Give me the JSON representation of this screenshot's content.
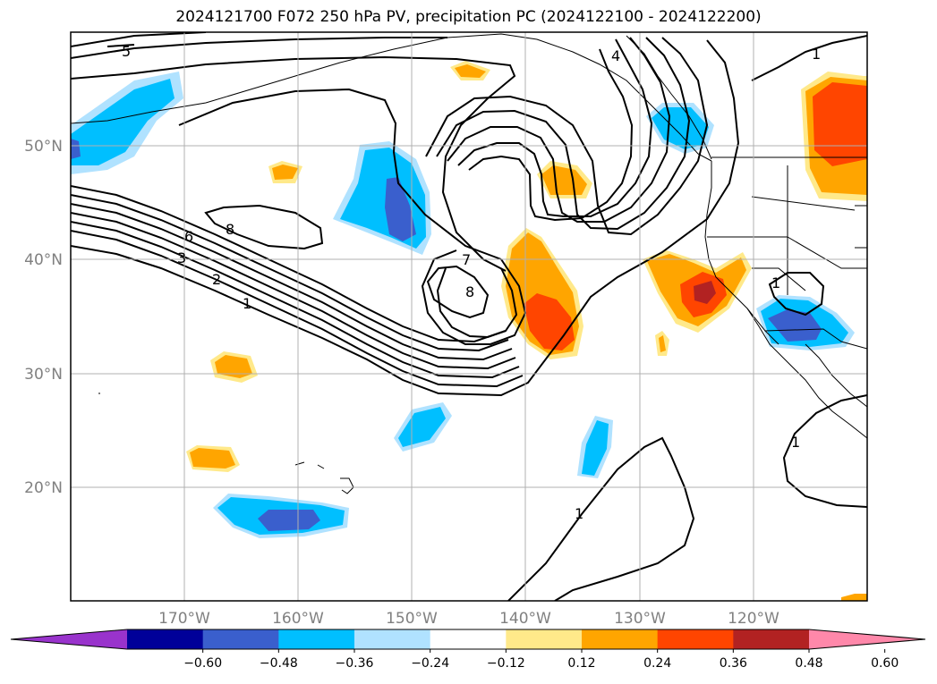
{
  "title": "2024121700 F072 250 hPa PV, precipitation PC (2024122100 - 2024122200)",
  "map": {
    "lon_range": [
      -180,
      -110
    ],
    "lat_range": [
      10,
      60
    ],
    "lon_labels": [
      "170°W",
      "160°W",
      "150°W",
      "140°W",
      "130°W",
      "120°W"
    ],
    "lat_labels": [
      "20°N",
      "30°N",
      "40°N",
      "50°N"
    ],
    "gridline_color": "#b0b0b0",
    "tick_label_color": "#808080",
    "contour_labels": [
      "5",
      "4",
      "1",
      "6",
      "3",
      "2",
      "1",
      "8",
      "7",
      "8",
      "1",
      "1",
      "1"
    ]
  },
  "colorbar": {
    "ticks": [
      "−0.60",
      "−0.48",
      "−0.36",
      "−0.24",
      "−0.12",
      "0.12",
      "0.24",
      "0.36",
      "0.48",
      "0.60"
    ],
    "colors": [
      "#9933cc",
      "#000099",
      "#3a5fcd",
      "#00bfff",
      "#b0e2ff",
      "#ffffff",
      "#ffe98a",
      "#ffa500",
      "#ff4500",
      "#b22222",
      "#ff88aa"
    ]
  }
}
